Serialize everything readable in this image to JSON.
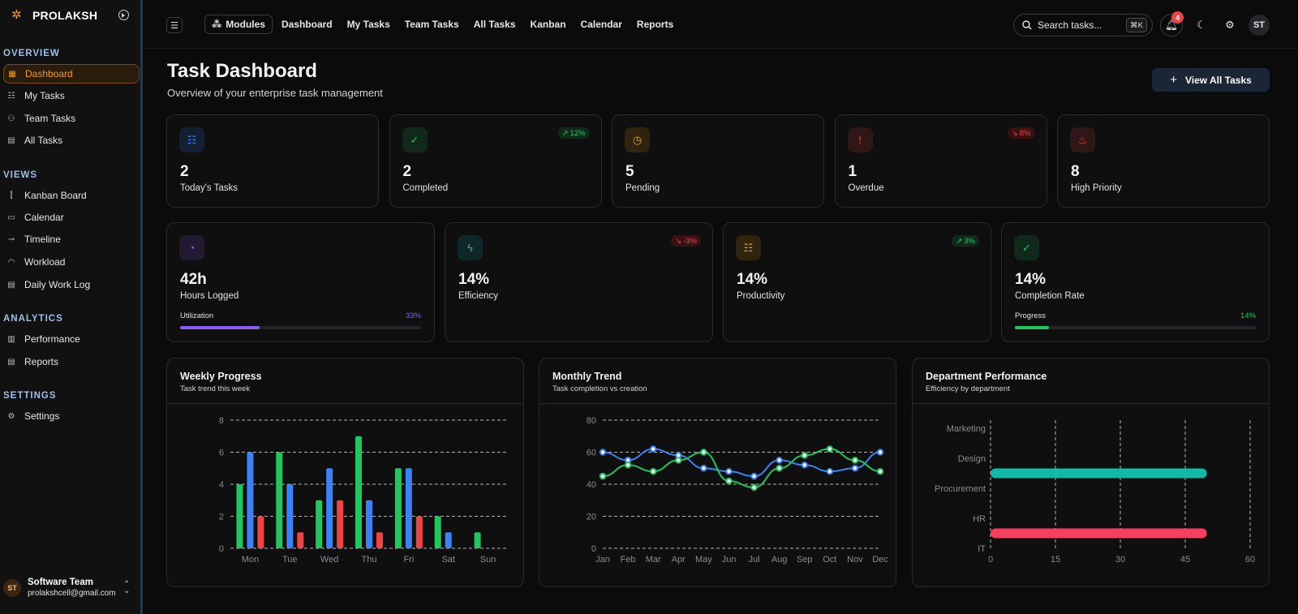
{
  "app": {
    "name": "PROLAKSH"
  },
  "sidebar": {
    "sections": [
      {
        "title": "OVERVIEW",
        "items": [
          {
            "label": "Dashboard",
            "icon": "grid-icon",
            "active": true
          },
          {
            "label": "My Tasks",
            "icon": "list-check-icon"
          },
          {
            "label": "Team Tasks",
            "icon": "users-icon"
          },
          {
            "label": "All Tasks",
            "icon": "clipboard-icon"
          }
        ]
      },
      {
        "title": "VIEWS",
        "items": [
          {
            "label": "Kanban Board",
            "icon": "kanban-icon"
          },
          {
            "label": "Calendar",
            "icon": "calendar-icon"
          },
          {
            "label": "Timeline",
            "icon": "timeline-icon"
          },
          {
            "label": "Workload",
            "icon": "gauge-icon"
          },
          {
            "label": "Daily Work Log",
            "icon": "document-icon"
          }
        ]
      },
      {
        "title": "ANALYTICS",
        "items": [
          {
            "label": "Performance",
            "icon": "bar-chart-icon"
          },
          {
            "label": "Reports",
            "icon": "report-icon"
          }
        ]
      },
      {
        "title": "SETTINGS",
        "items": [
          {
            "label": "Settings",
            "icon": "gear-icon"
          }
        ]
      }
    ],
    "user": {
      "initials": "ST",
      "name": "Software Team",
      "email": "prolakshcell@gmail.com"
    }
  },
  "topbar": {
    "modules_label": "Modules",
    "nav": [
      "Dashboard",
      "My Tasks",
      "Team Tasks",
      "All Tasks",
      "Kanban",
      "Calendar",
      "Reports"
    ],
    "search_placeholder": "Search tasks...",
    "search_shortcut": "⌘K",
    "notification_count": "4",
    "avatar_initials": "ST"
  },
  "page": {
    "title": "Task Dashboard",
    "subtitle": "Overview of your enterprise task management",
    "view_all_label": "View All Tasks"
  },
  "stats_row1": [
    {
      "value": "2",
      "label": "Today's Tasks",
      "icon": "list-check-icon",
      "color": "#3b82f6"
    },
    {
      "value": "2",
      "label": "Completed",
      "icon": "check-circle-icon",
      "color": "#22c55e",
      "trend": "12%",
      "trend_dir": "up"
    },
    {
      "value": "5",
      "label": "Pending",
      "icon": "clock-icon",
      "color": "#f59e0b"
    },
    {
      "value": "1",
      "label": "Overdue",
      "icon": "alert-circle-icon",
      "color": "#ef4444",
      "trend": "8%",
      "trend_dir": "down"
    },
    {
      "value": "8",
      "label": "High Priority",
      "icon": "flame-icon",
      "color": "#ef4444"
    }
  ],
  "stats_row2": [
    {
      "value": "42h",
      "label": "Hours Logged",
      "icon": "timer-icon",
      "color": "#8b5cf6",
      "bar_label": "Utilization",
      "bar_pct": "33%",
      "bar_value": 33
    },
    {
      "value": "14%",
      "label": "Efficiency",
      "icon": "bolt-icon",
      "color": "#14b8a6",
      "trend": "-3%",
      "trend_dir": "down"
    },
    {
      "value": "14%",
      "label": "Productivity",
      "icon": "list-check-icon",
      "color": "#f59e0b",
      "trend": "3%",
      "trend_dir": "up"
    },
    {
      "value": "14%",
      "label": "Completion Rate",
      "icon": "check-circle-icon",
      "color": "#22c55e",
      "bar_label": "Progress",
      "bar_pct": "14%",
      "bar_value": 14
    }
  ],
  "charts": {
    "weekly": {
      "title": "Weekly Progress",
      "subtitle": "Task trend this week"
    },
    "monthly": {
      "title": "Monthly Trend",
      "subtitle": "Task completion vs creation"
    },
    "department": {
      "title": "Department Performance",
      "subtitle": "Efficiency by department"
    }
  },
  "chart_data": [
    {
      "type": "bar",
      "title": "Weekly Progress",
      "categories": [
        "Mon",
        "Tue",
        "Wed",
        "Thu",
        "Fri",
        "Sat",
        "Sun"
      ],
      "series": [
        {
          "values": [
            4,
            6,
            3,
            7,
            5,
            2,
            1
          ],
          "color": "#22c55e"
        },
        {
          "values": [
            6,
            4,
            5,
            3,
            5,
            1,
            0
          ],
          "color": "#3b82f6"
        },
        {
          "values": [
            2,
            1,
            3,
            1,
            2,
            0,
            0
          ],
          "color": "#ef4444"
        }
      ],
      "ylim": [
        0,
        8
      ],
      "yticks": [
        0,
        2,
        4,
        6,
        8
      ],
      "grid": true
    },
    {
      "type": "line",
      "title": "Monthly Trend",
      "categories": [
        "Jan",
        "Feb",
        "Mar",
        "Apr",
        "May",
        "Jun",
        "Jul",
        "Aug",
        "Sep",
        "Oct",
        "Nov",
        "Dec"
      ],
      "series": [
        {
          "values": [
            60,
            55,
            62,
            58,
            50,
            48,
            45,
            55,
            52,
            48,
            50,
            60
          ],
          "color": "#3b82f6"
        },
        {
          "values": [
            45,
            52,
            48,
            55,
            60,
            42,
            38,
            50,
            58,
            62,
            55,
            48
          ],
          "color": "#22c55e"
        }
      ],
      "ylim": [
        0,
        80
      ],
      "yticks": [
        0,
        20,
        40,
        60,
        80
      ],
      "grid": true
    },
    {
      "type": "bar",
      "orientation": "horizontal",
      "title": "Department Performance",
      "categories": [
        "Marketing",
        "Design",
        "Procurement",
        "HR",
        "IT"
      ],
      "values": [
        0,
        50,
        0,
        50,
        0
      ],
      "bar_colors": [
        "#14b8a6",
        "#14b8a6",
        "#14b8a6",
        "#f43f5e",
        "#f43f5e"
      ],
      "xlim": [
        0,
        60
      ],
      "xticks": [
        0,
        15,
        30,
        45,
        60
      ],
      "grid": true
    }
  ]
}
